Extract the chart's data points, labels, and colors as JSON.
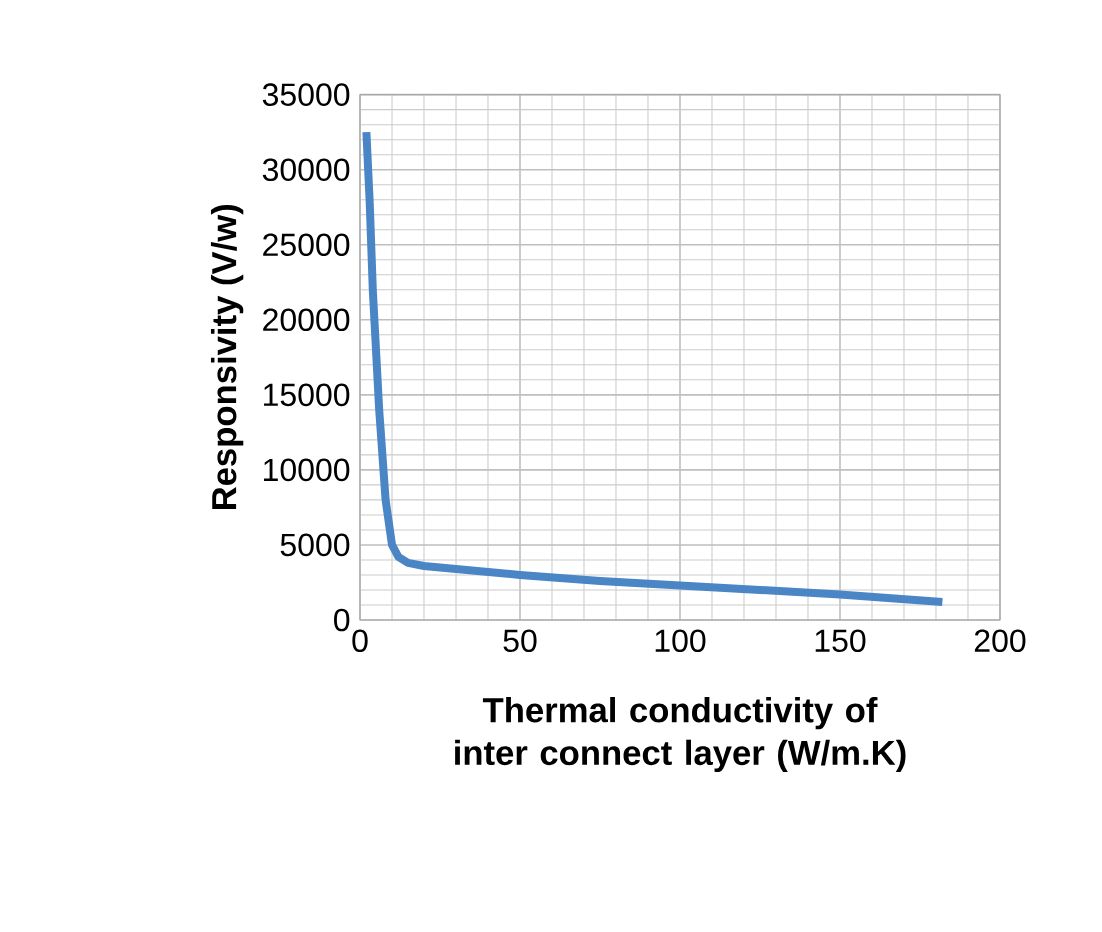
{
  "chart_data": {
    "type": "line",
    "xlabel": "Thermal conductivity of inter connect layer (W/m.K)",
    "ylabel": "Responsivity (V/w)",
    "x": [
      2,
      3,
      4,
      6,
      8,
      10,
      12,
      15,
      20,
      30,
      50,
      75,
      100,
      125,
      150,
      182
    ],
    "series": [
      {
        "color": "#4a86c5",
        "values": [
          32500,
          28000,
          22000,
          14000,
          8000,
          5000,
          4200,
          3800,
          3600,
          3400,
          3000,
          2600,
          2300,
          2000,
          1700,
          1200
        ]
      }
    ],
    "xlim": [
      0,
      200
    ],
    "ylim": [
      0,
      35000
    ],
    "xticks": [
      0,
      50,
      100,
      150,
      200
    ],
    "yticks": [
      0,
      5000,
      10000,
      15000,
      20000,
      25000,
      30000,
      35000
    ],
    "grid": true,
    "marker": "none",
    "line_style": "solid"
  }
}
